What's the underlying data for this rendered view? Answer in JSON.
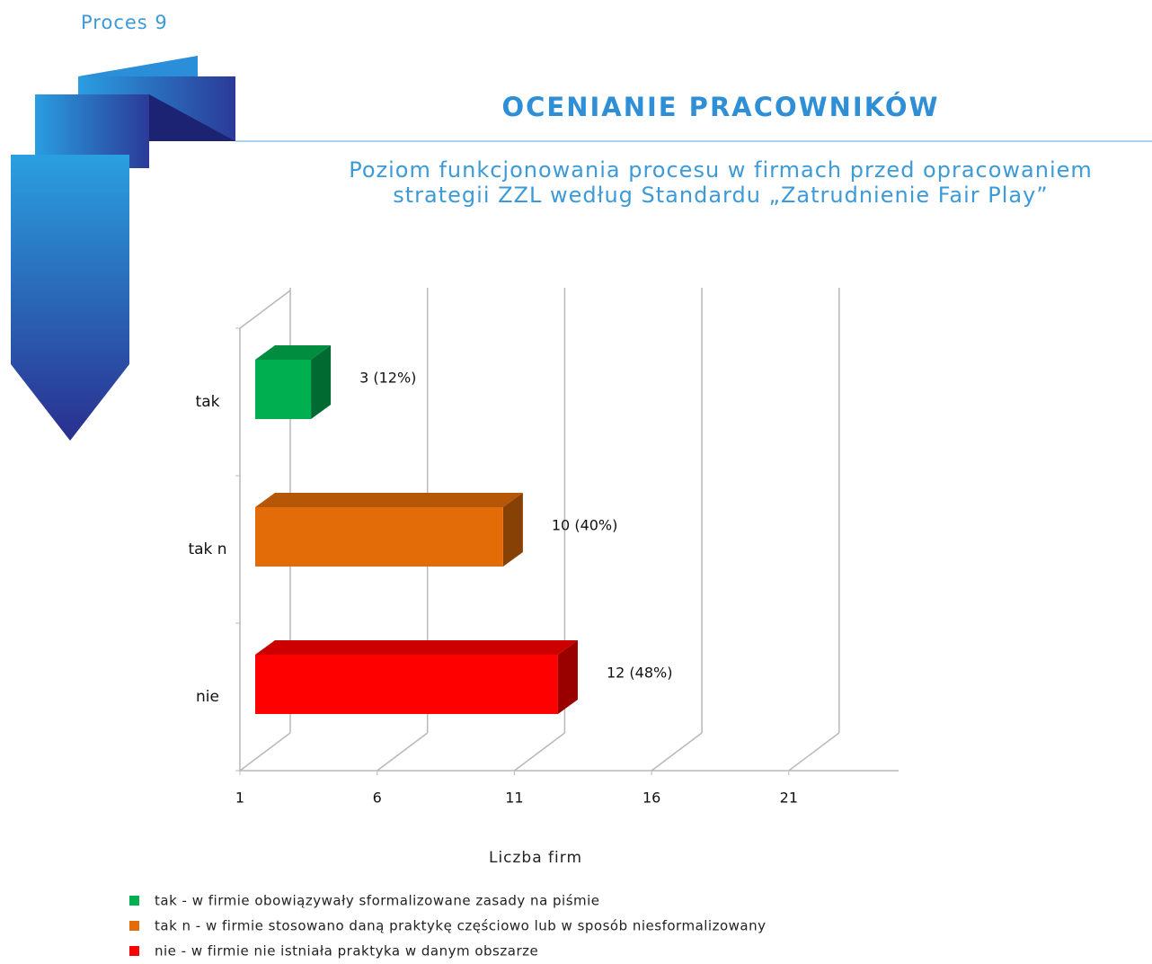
{
  "header": {
    "process": "Proces 9",
    "title": "OCENIANIE PRACOWNIKÓW",
    "subtitle": [
      "Poziom funkcjonowania procesu w firmach przed opracowaniem",
      "strategii ZZL według Standardu „Zatrudnienie Fair Play”"
    ]
  },
  "chart_data": {
    "type": "bar3d",
    "orientation": "horizontal",
    "categories": [
      "tak",
      "tak n",
      "nie"
    ],
    "values": [
      3,
      10,
      12
    ],
    "value_labels": [
      "3 (12%)",
      "10 (40%)",
      "12 (48%)"
    ],
    "colors": [
      "#00b050",
      "#e36c09",
      "#ff0000"
    ],
    "xlim": [
      1,
      25
    ],
    "xticks": [
      1,
      6,
      11,
      16,
      21
    ],
    "xlabel": "Liczba firm",
    "grid": true,
    "legend": [
      "tak - w firmie obowiązywały sformalizowane zasady na piśmie",
      "tak n - w firmie stosowano daną praktykę częściowo lub w sposób niesformalizowany",
      "nie - w firmie nie istniała praktyka w danym obszarze"
    ]
  }
}
